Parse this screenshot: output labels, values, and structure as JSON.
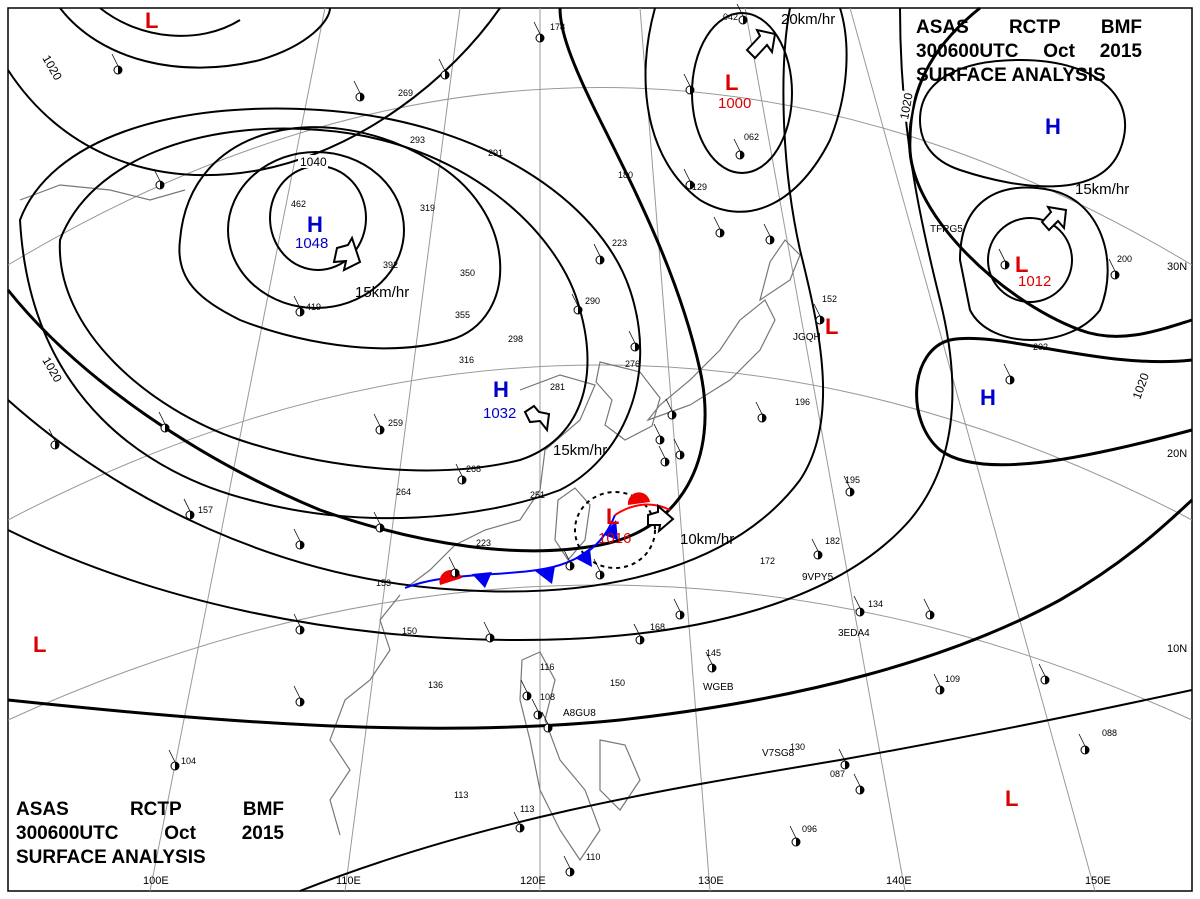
{
  "header": {
    "agency": "ASAS",
    "station": "RCTP",
    "office": "BMF",
    "datetime": "300600UTC",
    "month": "Oct",
    "year": "2015",
    "title": "SURFACE ANALYSIS"
  },
  "isobar_labels": [
    "1020",
    "1020",
    "1040",
    "1020",
    "1020"
  ],
  "centers": [
    {
      "type": "H",
      "pressure": "1048",
      "motion": "15km/hr",
      "color": "#0000cc"
    },
    {
      "type": "H",
      "pressure": "1032",
      "motion": "15km/hr",
      "color": "#0000cc"
    },
    {
      "type": "L",
      "pressure": "1000",
      "motion": "20km/hr",
      "color": "#dd0000"
    },
    {
      "type": "L",
      "pressure": "1012",
      "motion": "15km/hr",
      "color": "#dd0000"
    },
    {
      "type": "L",
      "pressure": "1016",
      "motion": "10km/hr",
      "color": "#dd0000"
    },
    {
      "type": "H",
      "pressure": "",
      "motion": "",
      "color": "#0000cc"
    },
    {
      "type": "H",
      "pressure": "",
      "motion": "",
      "color": "#0000cc"
    },
    {
      "type": "L",
      "pressure": "",
      "motion": "",
      "color": "#dd0000"
    },
    {
      "type": "L",
      "pressure": "",
      "motion": "",
      "color": "#dd0000"
    },
    {
      "type": "L",
      "pressure": "",
      "motion": "",
      "color": "#dd0000"
    },
    {
      "type": "L",
      "pressure": "",
      "motion": "",
      "color": "#dd0000"
    }
  ],
  "longitude_labels": [
    "100E",
    "110E",
    "120E",
    "130E",
    "140E",
    "150E"
  ],
  "latitude_labels": [
    "30N",
    "20N",
    "10N"
  ],
  "ship_callsigns": [
    "TFRG5",
    "JGQH",
    "9VPY5",
    "3EDA4",
    "WGEB",
    "A8GU8",
    "V7SG8"
  ],
  "station_values": [
    "178",
    "269",
    "293",
    "291",
    "180",
    "129",
    "223",
    "392",
    "350",
    "319",
    "355",
    "316",
    "290",
    "298",
    "281",
    "276",
    "259",
    "268",
    "264",
    "251",
    "223",
    "153",
    "150",
    "136",
    "113",
    "104",
    "116",
    "108",
    "150",
    "168",
    "145",
    "172",
    "182",
    "195",
    "134",
    "109",
    "088",
    "130",
    "087",
    "096",
    "110",
    "113",
    "202",
    "200",
    "152",
    "196",
    "042",
    "062",
    "157",
    "462",
    "419"
  ],
  "colors": {
    "isobar": "#000000",
    "high": "#0000cc",
    "low": "#dd0000",
    "cold_front": "#0000ff",
    "warm_front": "#ff0000",
    "coast": "#777777",
    "grid": "#999999"
  }
}
